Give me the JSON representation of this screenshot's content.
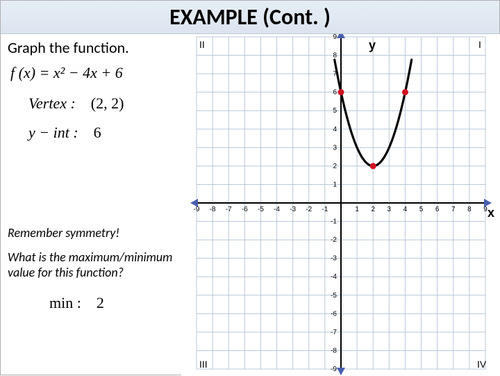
{
  "title": "EXAMPLE (Cont. )",
  "instruction": "Graph the function.",
  "function_display": "f (x) = x² − 4x + 6",
  "vertex_label": "Vertex :",
  "vertex_value": "(2, 2)",
  "yint_label": "y − int :",
  "yint_value": "6",
  "symmetry_note": "Remember symmetry!",
  "question": "What is the maximum/minimum value for this function?",
  "min_label": "min :",
  "min_value": "2",
  "chart": {
    "type": "scatter-line",
    "xlim": [
      -9,
      9
    ],
    "ylim": [
      -9,
      9
    ],
    "xtick_step": 1,
    "ytick_step": 1,
    "grid_color": "#b8c8d8",
    "axis_color": "#000000",
    "axis_arrow_color": "#4a5fb0",
    "background_color": "#ffffff",
    "curve_color": "#000000",
    "curve_width": 3.2,
    "parabola": {
      "a": 1,
      "b": -4,
      "c": 6,
      "x_from": -0.4,
      "x_to": 4.4
    },
    "points": [
      {
        "x": 0,
        "y": 6,
        "color": "#d01020"
      },
      {
        "x": 2,
        "y": 2,
        "color": "#d01020"
      },
      {
        "x": 4,
        "y": 6,
        "color": "#d01020"
      }
    ],
    "point_radius": 4.5,
    "labels": {
      "x": "x",
      "y": "y",
      "quadrants": [
        "I",
        "II",
        "III",
        "IV"
      ]
    },
    "tick_fontsize": 10,
    "label_fontsize": 18
  }
}
